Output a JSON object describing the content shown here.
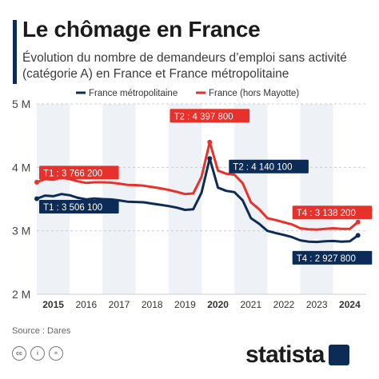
{
  "title": "Le chômage en France",
  "subtitle": "Évolution du nombre de demandeurs d’emploi sans activité (catégorie A) en France et France métropolitaine",
  "source": "Source : Dares",
  "brand": "statista",
  "icons": [
    "cc-icon",
    "info-icon",
    "equals-icon"
  ],
  "colors": {
    "accent": "#0d2b57",
    "series_blue": "#0d2b57",
    "series_red": "#e8312b",
    "highlight_band": "#eef1f5"
  },
  "chart_data": {
    "type": "line",
    "title": "Le chômage en France",
    "xlabel": "",
    "ylabel": "",
    "xlim": [
      2015,
      2025
    ],
    "ylim": [
      2000000,
      5000000
    ],
    "grid": true,
    "legend_position": "top",
    "x_ticks": [
      2015,
      2016,
      2017,
      2018,
      2019,
      2020,
      2021,
      2022,
      2023,
      2024
    ],
    "x_tick_labels": [
      "2015",
      "2016",
      "2017",
      "2018",
      "2019",
      "2020",
      "2021",
      "2022",
      "2023",
      "2024"
    ],
    "bold_ticks": [
      "2015",
      "2020",
      "2024"
    ],
    "y_ticks": [
      2000000,
      3000000,
      4000000,
      5000000
    ],
    "y_tick_labels": [
      "2 M",
      "3 M",
      "4 M",
      "5 M"
    ],
    "series": [
      {
        "name": "France métropolitaine",
        "color": "#0d2b57",
        "points": [
          [
            2015.0,
            3506100
          ],
          [
            2015.25,
            3555000
          ],
          [
            2015.5,
            3545000
          ],
          [
            2015.75,
            3580000
          ],
          [
            2016.0,
            3560000
          ],
          [
            2016.25,
            3520000
          ],
          [
            2016.5,
            3495000
          ],
          [
            2016.75,
            3510000
          ],
          [
            2017.0,
            3500000
          ],
          [
            2017.25,
            3495000
          ],
          [
            2017.5,
            3480000
          ],
          [
            2017.75,
            3460000
          ],
          [
            2018.0,
            3455000
          ],
          [
            2018.25,
            3450000
          ],
          [
            2018.5,
            3430000
          ],
          [
            2018.75,
            3410000
          ],
          [
            2019.0,
            3390000
          ],
          [
            2019.25,
            3365000
          ],
          [
            2019.5,
            3330000
          ],
          [
            2019.75,
            3340000
          ],
          [
            2020.0,
            3600000
          ],
          [
            2020.25,
            4140100
          ],
          [
            2020.5,
            3680000
          ],
          [
            2020.75,
            3630000
          ],
          [
            2021.0,
            3610000
          ],
          [
            2021.25,
            3480000
          ],
          [
            2021.5,
            3200000
          ],
          [
            2021.75,
            3110000
          ],
          [
            2022.0,
            3000000
          ],
          [
            2022.25,
            2965000
          ],
          [
            2022.5,
            2935000
          ],
          [
            2022.75,
            2900000
          ],
          [
            2023.0,
            2850000
          ],
          [
            2023.25,
            2830000
          ],
          [
            2023.5,
            2825000
          ],
          [
            2023.75,
            2835000
          ],
          [
            2024.0,
            2840000
          ],
          [
            2024.25,
            2830000
          ],
          [
            2024.5,
            2835000
          ],
          [
            2024.75,
            2927800
          ]
        ]
      },
      {
        "name": "France (hors Mayotte)",
        "color": "#e8312b",
        "points": [
          [
            2015.0,
            3766200
          ],
          [
            2015.25,
            3815000
          ],
          [
            2015.5,
            3805000
          ],
          [
            2015.75,
            3838000
          ],
          [
            2016.0,
            3815000
          ],
          [
            2016.25,
            3780000
          ],
          [
            2016.5,
            3755000
          ],
          [
            2016.75,
            3765000
          ],
          [
            2017.0,
            3765000
          ],
          [
            2017.25,
            3760000
          ],
          [
            2017.5,
            3745000
          ],
          [
            2017.75,
            3725000
          ],
          [
            2018.0,
            3720000
          ],
          [
            2018.25,
            3710000
          ],
          [
            2018.5,
            3690000
          ],
          [
            2018.75,
            3670000
          ],
          [
            2019.0,
            3645000
          ],
          [
            2019.25,
            3615000
          ],
          [
            2019.5,
            3580000
          ],
          [
            2019.75,
            3590000
          ],
          [
            2020.0,
            3850000
          ],
          [
            2020.25,
            4397800
          ],
          [
            2020.5,
            3950000
          ],
          [
            2020.75,
            3900000
          ],
          [
            2021.0,
            3885000
          ],
          [
            2021.25,
            3750000
          ],
          [
            2021.5,
            3450000
          ],
          [
            2021.75,
            3340000
          ],
          [
            2022.0,
            3200000
          ],
          [
            2022.25,
            3170000
          ],
          [
            2022.5,
            3135000
          ],
          [
            2022.75,
            3100000
          ],
          [
            2023.0,
            3040000
          ],
          [
            2023.25,
            3025000
          ],
          [
            2023.5,
            3020000
          ],
          [
            2023.75,
            3030000
          ],
          [
            2024.0,
            3040000
          ],
          [
            2024.25,
            3030000
          ],
          [
            2024.5,
            3030000
          ],
          [
            2024.75,
            3138200
          ]
        ]
      }
    ],
    "annotations": [
      {
        "text": "T1 : 3 766 200",
        "series": "France (hors Mayotte)",
        "x": 2015.0,
        "y": 3766200
      },
      {
        "text": "T1 : 3 506 100",
        "series": "France métropolitaine",
        "x": 2015.0,
        "y": 3506100
      },
      {
        "text": "T2 : 4 397 800",
        "series": "France (hors Mayotte)",
        "x": 2020.25,
        "y": 4397800
      },
      {
        "text": "T2 : 4 140 100",
        "series": "France métropolitaine",
        "x": 2020.25,
        "y": 4140100
      },
      {
        "text": "T4 : 3 138 200",
        "series": "France (hors Mayotte)",
        "x": 2024.75,
        "y": 3138200
      },
      {
        "text": "T4 : 2 927 800",
        "series": "France métropolitaine",
        "x": 2024.75,
        "y": 2927800
      }
    ]
  }
}
